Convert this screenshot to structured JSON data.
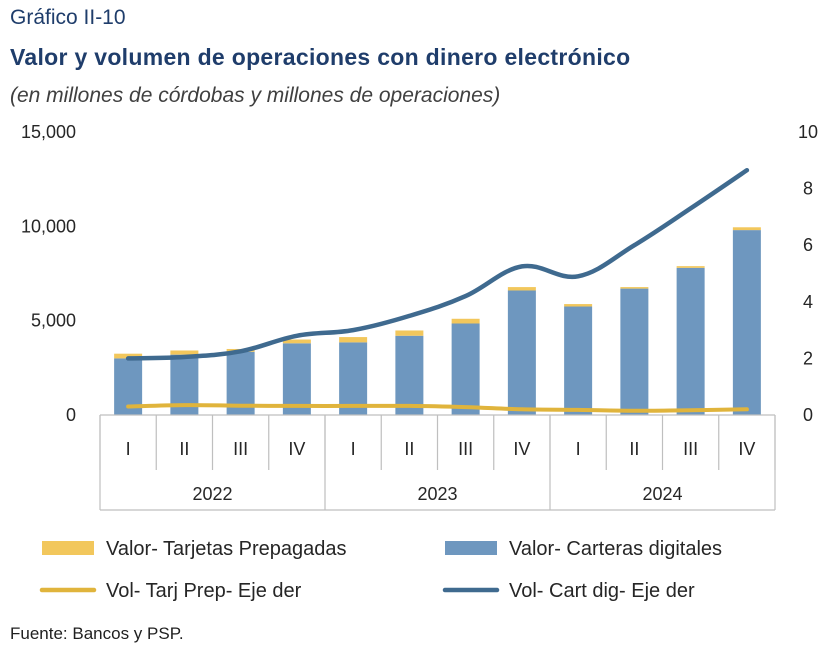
{
  "header": {
    "label": "Gráfico II-10",
    "title": "Valor y volumen de operaciones con dinero electrónico",
    "subtitle": "(en millones de córdobas y millones de operaciones)"
  },
  "source": "Fuente: Bancos y PSP.",
  "colors": {
    "prepaid": "#f2c75c",
    "wallet": "#6e97bf",
    "vol_prepaid": "#e0b43c",
    "vol_wallet": "#3f6a8f",
    "axis": "#bfbfbf"
  },
  "chart_data": {
    "type": "bar",
    "categories": [
      "I",
      "II",
      "III",
      "IV",
      "I",
      "II",
      "III",
      "IV",
      "I",
      "II",
      "III",
      "IV"
    ],
    "groups": [
      {
        "label": "2022",
        "count": 4
      },
      {
        "label": "2023",
        "count": 4
      },
      {
        "label": "2024",
        "count": 4
      }
    ],
    "left_axis": {
      "min": 0,
      "max": 15000,
      "ticks": [
        "0",
        "5,000",
        "10,000",
        "15,000"
      ],
      "tick_values": [
        0,
        5000,
        10000,
        15000
      ]
    },
    "right_axis": {
      "min": 0,
      "max": 10,
      "ticks": [
        "0",
        "2",
        "4",
        "6",
        "8",
        "10"
      ],
      "tick_values": [
        0,
        2,
        4,
        6,
        8,
        10
      ]
    },
    "series": [
      {
        "name": "Valor- Tarjetas Prepagadas",
        "kind": "stacked-bar",
        "axis": "left",
        "values": [
          250,
          220,
          150,
          200,
          280,
          280,
          250,
          180,
          130,
          80,
          90,
          150
        ]
      },
      {
        "name": "Valor- Carteras digitales",
        "kind": "stacked-bar",
        "axis": "left",
        "values": [
          3000,
          3200,
          3350,
          3800,
          3850,
          4200,
          4850,
          6600,
          5750,
          6700,
          7800,
          9800
        ]
      },
      {
        "name": "Vol- Tarj Prep- Eje der",
        "kind": "line",
        "axis": "right",
        "values": [
          0.3,
          0.35,
          0.33,
          0.32,
          0.32,
          0.32,
          0.28,
          0.2,
          0.18,
          0.15,
          0.17,
          0.2
        ]
      },
      {
        "name": "Vol- Cart dig- Eje der",
        "kind": "line",
        "axis": "right",
        "values": [
          2.0,
          2.05,
          2.25,
          2.8,
          3.0,
          3.5,
          4.2,
          5.25,
          4.9,
          6.0,
          7.3,
          8.65
        ]
      }
    ],
    "legend": [
      {
        "name": "Valor- Tarjetas Prepagadas",
        "marker": "box",
        "color_key": "prepaid"
      },
      {
        "name": "Valor- Carteras digitales",
        "marker": "box",
        "color_key": "wallet"
      },
      {
        "name": "Vol- Tarj Prep- Eje der",
        "marker": "line",
        "color_key": "vol_prepaid"
      },
      {
        "name": "Vol- Cart dig- Eje der",
        "marker": "line",
        "color_key": "vol_wallet"
      }
    ],
    "legend_position": "bottom",
    "grid": false
  }
}
